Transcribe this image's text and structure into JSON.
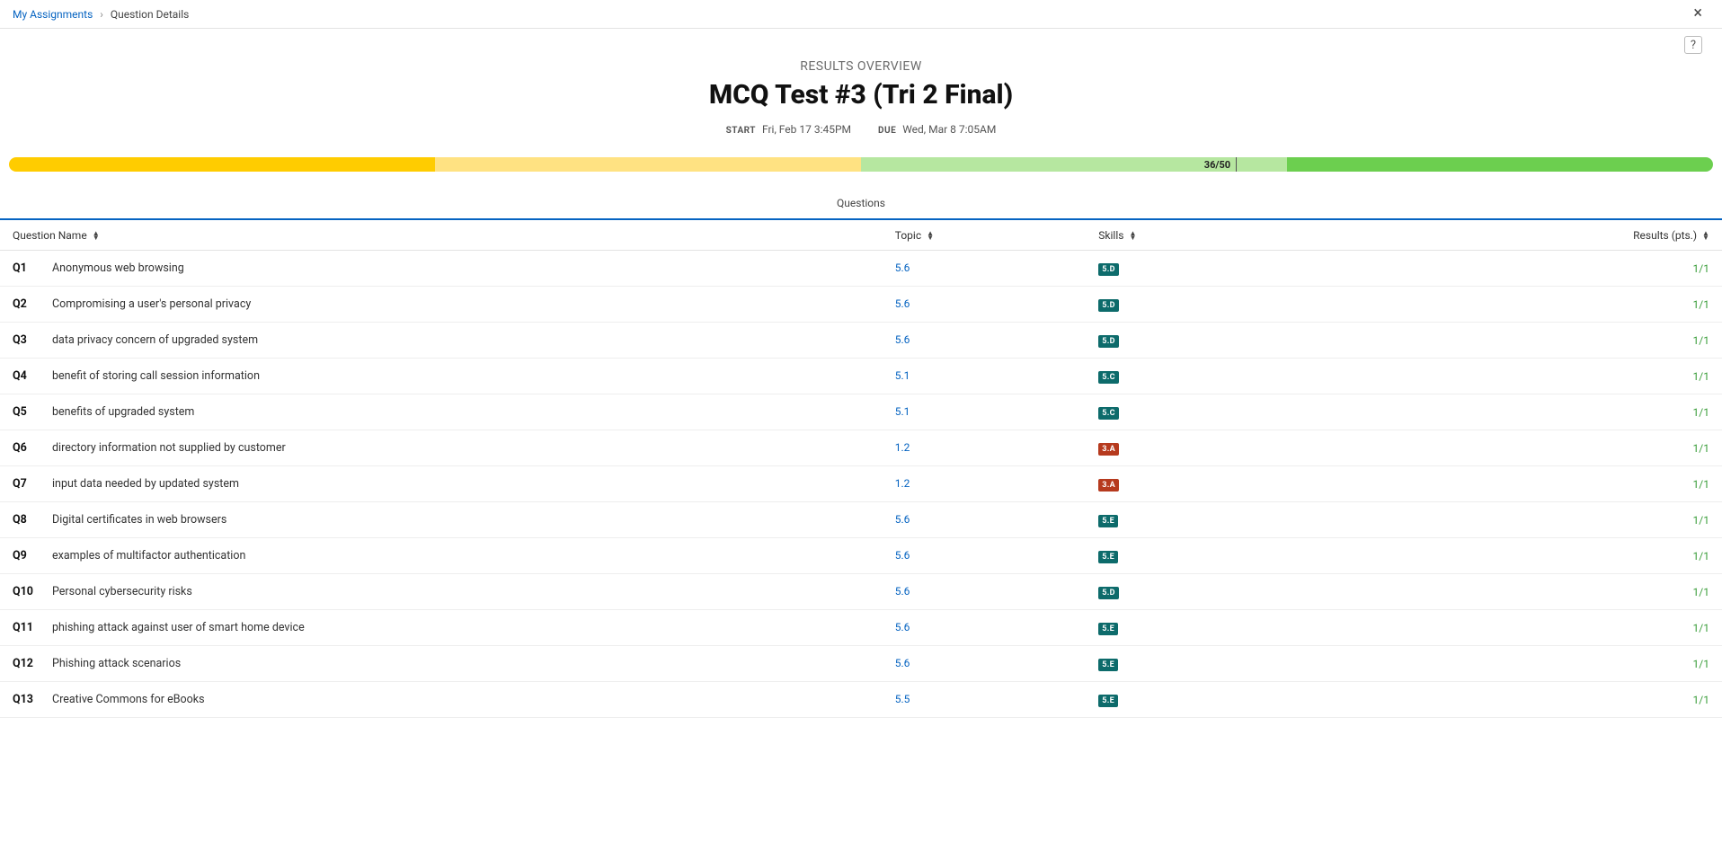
{
  "breadcrumb": {
    "parent": "My Assignments",
    "current": "Question Details"
  },
  "header": {
    "overline": "RESULTS OVERVIEW",
    "title": "MCQ Test #3 (Tri 2 Final)",
    "start_label": "START",
    "start_value": "Fri, Feb 17 3:45PM",
    "due_label": "DUE",
    "due_value": "Wed, Mar 8 7:05AM"
  },
  "progress": {
    "score_text": "36/50",
    "score_pos_pct": 72,
    "segments": [
      {
        "width_pct": 25,
        "color": "#ffcc00"
      },
      {
        "width_pct": 25,
        "color": "#ffe282"
      },
      {
        "width_pct": 22,
        "color": "#b6e7a0"
      },
      {
        "width_pct": 3,
        "color": "#b6e7a0"
      },
      {
        "width_pct": 25,
        "color": "#6ccf4f"
      }
    ]
  },
  "tabs": {
    "active": "Questions"
  },
  "columns": {
    "name": "Question Name",
    "topic": "Topic",
    "skills": "Skills",
    "results": "Results (pts.)"
  },
  "skill_colors": {
    "teal": "#0d6b6b",
    "red": "#b63a1e"
  },
  "rows": [
    {
      "num": "Q1",
      "name": "Anonymous web browsing",
      "topic": "5.6",
      "skill": "5.D",
      "skill_color": "teal",
      "result": "1/1"
    },
    {
      "num": "Q2",
      "name": "Compromising a user's personal privacy",
      "topic": "5.6",
      "skill": "5.D",
      "skill_color": "teal",
      "result": "1/1"
    },
    {
      "num": "Q3",
      "name": "data privacy concern of upgraded system",
      "topic": "5.6",
      "skill": "5.D",
      "skill_color": "teal",
      "result": "1/1"
    },
    {
      "num": "Q4",
      "name": "benefit of storing call session information",
      "topic": "5.1",
      "skill": "5.C",
      "skill_color": "teal",
      "result": "1/1"
    },
    {
      "num": "Q5",
      "name": "benefits of upgraded system",
      "topic": "5.1",
      "skill": "5.C",
      "skill_color": "teal",
      "result": "1/1"
    },
    {
      "num": "Q6",
      "name": "directory information not supplied by customer",
      "topic": "1.2",
      "skill": "3.A",
      "skill_color": "red",
      "result": "1/1"
    },
    {
      "num": "Q7",
      "name": "input data needed by updated system",
      "topic": "1.2",
      "skill": "3.A",
      "skill_color": "red",
      "result": "1/1"
    },
    {
      "num": "Q8",
      "name": "Digital certificates in web browsers",
      "topic": "5.6",
      "skill": "5.E",
      "skill_color": "teal",
      "result": "1/1"
    },
    {
      "num": "Q9",
      "name": "examples of multifactor authentication",
      "topic": "5.6",
      "skill": "5.E",
      "skill_color": "teal",
      "result": "1/1"
    },
    {
      "num": "Q10",
      "name": "Personal cybersecurity risks",
      "topic": "5.6",
      "skill": "5.D",
      "skill_color": "teal",
      "result": "1/1"
    },
    {
      "num": "Q11",
      "name": "phishing attack against user of smart home device",
      "topic": "5.6",
      "skill": "5.E",
      "skill_color": "teal",
      "result": "1/1"
    },
    {
      "num": "Q12",
      "name": "Phishing attack scenarios",
      "topic": "5.6",
      "skill": "5.E",
      "skill_color": "teal",
      "result": "1/1"
    },
    {
      "num": "Q13",
      "name": "Creative Commons for eBooks",
      "topic": "5.5",
      "skill": "5.E",
      "skill_color": "teal",
      "result": "1/1"
    }
  ]
}
